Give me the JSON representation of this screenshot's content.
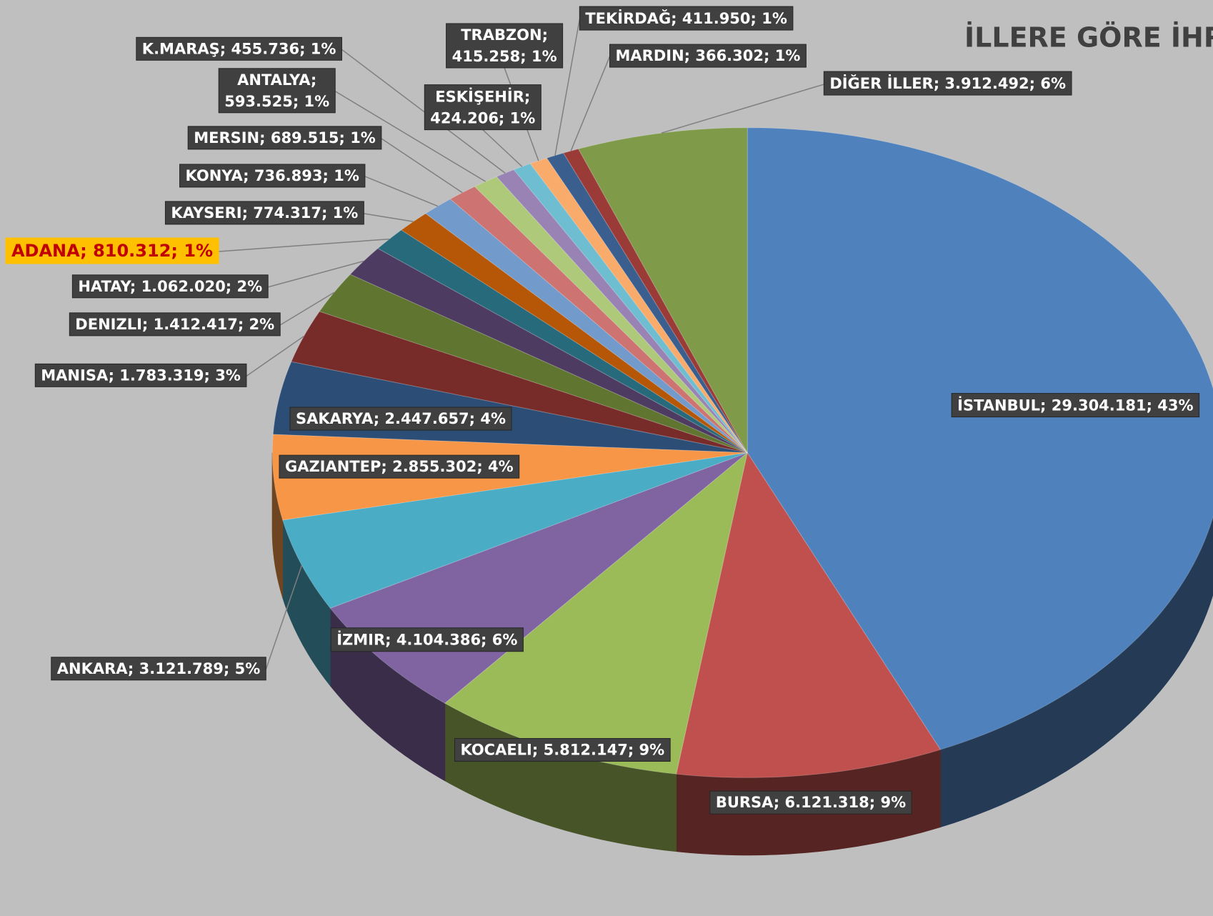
{
  "chart_data": {
    "type": "pie",
    "title": "İLLERE GÖRE İHRA",
    "values": [
      29304181,
      6121318,
      5812147,
      4104386,
      3121789,
      2855302,
      2447657,
      1783319,
      1412417,
      1062020,
      810312,
      774317,
      736893,
      689515,
      593525,
      455736,
      424206,
      415258,
      411950,
      366302,
      3912492
    ],
    "value_labels": [
      "İSTANBUL; 29.304.181; 43%",
      "BURSA; 6.121.318; 9%",
      "KOCAELI; 5.812.147; 9%",
      "İZMIR; 4.104.386; 6%",
      "ANKARA; 3.121.789; 5%",
      "GAZIANTEP; 2.855.302; 4%",
      "SAKARYA; 2.447.657; 4%",
      "MANISA; 1.783.319; 3%",
      "DENIZLI; 1.412.417; 2%",
      "HATAY; 1.062.020; 2%",
      "ADANA; 810.312; 1%",
      "KAYSERI; 774.317; 1%",
      "KONYA; 736.893; 1%",
      "MERSIN; 689.515; 1%",
      "ANTALYA; 593.525; 1%",
      "K.MARAŞ; 455.736; 1%",
      "ESKİŞEHİR; 424.206; 1%",
      "TRABZON; 415.258; 1%",
      "TEKİRDAĞ; 411.950; 1%",
      "MARDIN; 366.302; 1%",
      "DİĞER İLLER; 3.912.492; 6%"
    ],
    "colors": [
      "#4f81bd",
      "#c0504d",
      "#9bbb59",
      "#8064a2",
      "#4bacc6",
      "#f79646",
      "#2c4d75",
      "#772c2a",
      "#5f7530",
      "#4d3b62",
      "#276a7c",
      "#b65708",
      "#729aca",
      "#cd7371",
      "#afc97a",
      "#9983b5",
      "#6fbdd1",
      "#f9ab6b",
      "#3a5f8f",
      "#9b3b38",
      "#7f9a48"
    ]
  }
}
